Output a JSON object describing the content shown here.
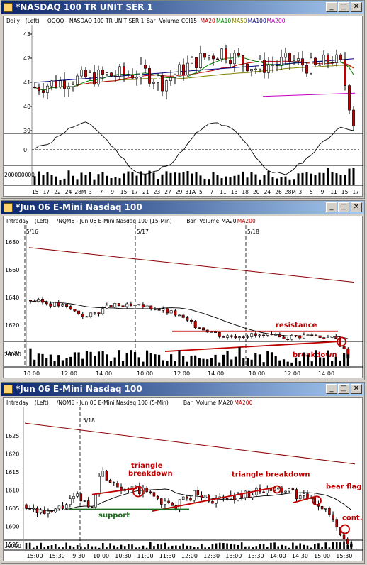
{
  "windows": [
    {
      "title": "*NASDAQ 100 TR UNIT SER 1",
      "header": {
        "parts": [
          {
            "text": "Daily",
            "color": "#000000"
          },
          {
            "text": "(Left)",
            "color": "#000000"
          },
          {
            "text": "QQQQ - NASDAQ 100 TR UNIT SER 1",
            "color": "#000000"
          },
          {
            "text": "Bar",
            "color": "#000000"
          },
          {
            "text": "Volume",
            "color": "#000000"
          },
          {
            "text": "CCI15",
            "color": "#000000"
          },
          {
            "text": "MA20",
            "color": "#c00000"
          },
          {
            "text": "MA10",
            "color": "#008000"
          },
          {
            "text": "MA50",
            "color": "#808000"
          },
          {
            "text": "MA100",
            "color": "#000080"
          },
          {
            "text": "MA200",
            "color": "#c000c0"
          }
        ]
      },
      "price_ticks": [
        "43",
        "42",
        "41",
        "40",
        "39"
      ],
      "cci_ticks": [
        "0"
      ],
      "volume_label": "200000000",
      "date_labels": [
        "15",
        "17",
        "22",
        "24",
        "28M",
        "3",
        "7",
        "9",
        "15",
        "17",
        "21",
        "23",
        "27",
        "29",
        "31A",
        "5",
        "7",
        "11",
        "13",
        "18",
        "20",
        "24",
        "26",
        "28M",
        "3",
        "5",
        "9",
        "11",
        "15",
        "17"
      ]
    },
    {
      "title": "*Jun 06  E-Mini Nasdaq 100",
      "header": {
        "parts": [
          {
            "text": "Intraday",
            "color": "#000000"
          },
          {
            "text": "(Left)",
            "color": "#000000"
          },
          {
            "text": "/NQM6 - Jun 06 E-Mini Nasdaq 100 (15-Min)",
            "color": "#000000"
          },
          {
            "text": "Bar",
            "color": "#000000"
          },
          {
            "text": "Volume",
            "color": "#000000"
          },
          {
            "text": "MA20",
            "color": "#000000"
          },
          {
            "text": "MA200",
            "color": "#c00000"
          }
        ]
      },
      "session_labels": [
        "5/16",
        "5/17",
        "5/18"
      ],
      "price_ticks": [
        "1680",
        "1660",
        "1640",
        "1620",
        "1600"
      ],
      "volume_label": "20000",
      "time_labels": [
        "10:00",
        "12:00",
        "14:00",
        "10:00",
        "12:00",
        "14:00",
        "10:00",
        "12:00",
        "14:00"
      ],
      "annotations": {
        "resistance": "resistance",
        "breakdown": "breakdown"
      }
    },
    {
      "title": "*Jun 06  E-Mini Nasdaq 100",
      "header": {
        "parts": [
          {
            "text": "Intraday",
            "color": "#000000"
          },
          {
            "text": "(Left)",
            "color": "#000000"
          },
          {
            "text": "/NQM6 - Jun 06 E-Mini Nasdaq 100 (5-Min)",
            "color": "#000000"
          },
          {
            "text": "Bar",
            "color": "#000000"
          },
          {
            "text": "Volume",
            "color": "#000000"
          },
          {
            "text": "MA20",
            "color": "#000000"
          },
          {
            "text": "MA200",
            "color": "#c00000"
          }
        ]
      },
      "session_labels": [
        "5/18"
      ],
      "price_ticks": [
        "1625",
        "1620",
        "1615",
        "1610",
        "1605",
        "1600",
        "1595"
      ],
      "volume_label": "10000",
      "time_labels": [
        "15:00",
        "15:30",
        "9:30",
        "10:00",
        "10:30",
        "11:00",
        "11:30",
        "12:00",
        "12:30",
        "13:00",
        "13:30",
        "14:00",
        "14:30",
        "15:00",
        "15:30"
      ],
      "annotations": {
        "triangle_breakdown_1": "triangle\nbreakdown",
        "triangle_breakdown_2": "triangle breakdown",
        "support": "support",
        "bear_flag": "bear flag",
        "cont": "cont."
      }
    }
  ],
  "colors": {
    "up_candle": "#ffffff",
    "down_candle": "#c00000",
    "annotation_red": "#c00000",
    "annotation_green": "#1a6b1a",
    "ma200_line": "#8b0000",
    "title_bar": "#0a246a"
  }
}
